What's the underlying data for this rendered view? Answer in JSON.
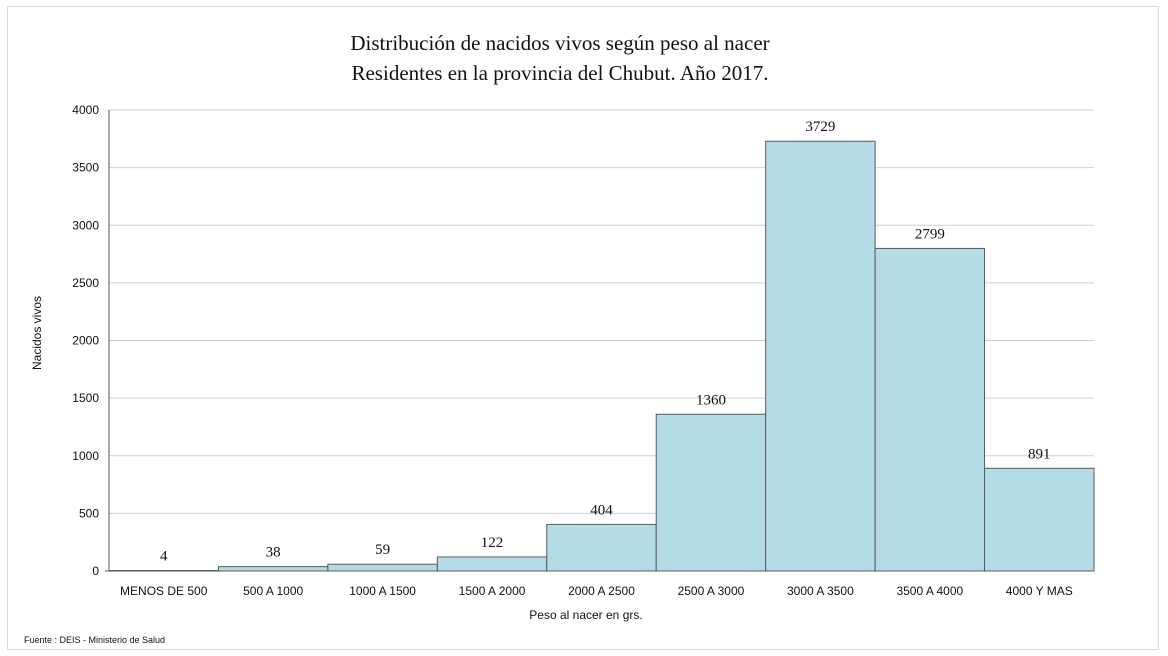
{
  "chart_data": {
    "type": "bar",
    "title": "Distribución de nacidos vivos según peso al nacer",
    "subtitle": "Residentes en la provincia del Chubut. Año 2017.",
    "xlabel": "Peso al nacer en grs.",
    "ylabel": "Nacidos vivos",
    "categories": [
      "MENOS DE 500",
      "500 A 1000",
      "1000 A 1500",
      "1500 A 2000",
      "2000 A 2500",
      "2500 A 3000",
      "3000 A 3500",
      "3500 A 4000",
      "4000 Y MAS"
    ],
    "values": [
      4,
      38,
      59,
      122,
      404,
      1360,
      3729,
      2799,
      891
    ],
    "ylim": [
      0,
      4000
    ],
    "yticks": [
      0,
      500,
      1000,
      1500,
      2000,
      2500,
      3000,
      3500,
      4000
    ],
    "grid": true,
    "legend": "none",
    "bar_color": "#b4dce6",
    "bar_edge_color": "#595959",
    "source": "Fuente : DEIS - Ministerio de Salud"
  }
}
